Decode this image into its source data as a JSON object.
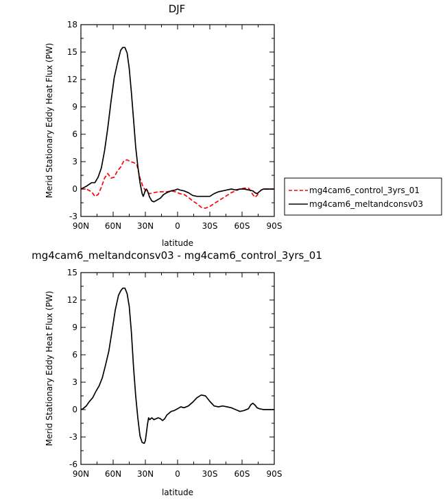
{
  "chart_data": [
    {
      "type": "line",
      "title": "DJF",
      "xlabel": "latitude",
      "ylabel": "Merid Stationary Eddy Heat Flux (PW)",
      "xlim": [
        90,
        -90
      ],
      "ylim": [
        -3,
        18
      ],
      "yticks": [
        "-3",
        "0",
        "3",
        "6",
        "9",
        "12",
        "15",
        "18"
      ],
      "yticks_values": [
        -3,
        0,
        3,
        6,
        9,
        12,
        15,
        18
      ],
      "xticks": [
        "90N",
        "60N",
        "30N",
        "0",
        "30S",
        "60S",
        "90S"
      ],
      "xticks_values": [
        90,
        60,
        30,
        0,
        -30,
        -60,
        -90
      ],
      "legend_position": "right",
      "series": [
        {
          "name": "mg4cam6_control_3yrs_01",
          "color": "#ff0000",
          "dash": "dashed",
          "x": [
            90,
            85,
            80,
            77,
            74,
            71,
            68,
            65,
            62,
            59,
            56,
            53,
            50,
            47,
            44,
            41,
            38,
            35,
            32,
            29,
            26,
            22,
            18,
            14,
            10,
            6,
            2,
            -2,
            -6,
            -10,
            -14,
            -18,
            -22,
            -26,
            -30,
            -34,
            -38,
            -42,
            -46,
            -50,
            -54,
            -58,
            -62,
            -66,
            -68,
            -70,
            -72,
            -74,
            -76,
            -78,
            -80,
            -83,
            -86,
            -90
          ],
          "y": [
            0.0,
            0.0,
            -0.3,
            -0.8,
            -0.6,
            0.2,
            1.2,
            1.7,
            1.2,
            1.3,
            2.0,
            2.4,
            3.1,
            3.2,
            3.0,
            2.9,
            2.7,
            1.2,
            0.2,
            -0.3,
            -0.5,
            -0.4,
            -0.3,
            -0.3,
            -0.3,
            -0.2,
            -0.3,
            -0.5,
            -0.6,
            -0.9,
            -1.3,
            -1.6,
            -2.0,
            -2.1,
            -1.9,
            -1.6,
            -1.3,
            -1.0,
            -0.7,
            -0.4,
            -0.2,
            0.0,
            0.1,
            0.1,
            -0.2,
            -0.6,
            -0.9,
            -0.7,
            -0.3,
            -0.1,
            0.0,
            0.0,
            0.0,
            0.0
          ]
        },
        {
          "name": "mg4cam6_meltandconsv03",
          "color": "#000000",
          "dash": "solid",
          "x": [
            90,
            85,
            80,
            77,
            74,
            71,
            68,
            65,
            62,
            59,
            56,
            53,
            51,
            49,
            47,
            45,
            43,
            41,
            39,
            37,
            35,
            34,
            33,
            32,
            31,
            30,
            29,
            28,
            26,
            24,
            22,
            19,
            16,
            13,
            10,
            6,
            2,
            0,
            -2,
            -6,
            -10,
            -14,
            -18,
            -22,
            -26,
            -30,
            -34,
            -38,
            -42,
            -46,
            -50,
            -54,
            -58,
            -62,
            -66,
            -70,
            -72,
            -74,
            -76,
            -78,
            -80,
            -84,
            -90
          ],
          "y": [
            0.0,
            0.3,
            0.7,
            0.7,
            1.3,
            2.3,
            4.2,
            6.7,
            9.6,
            12.2,
            13.8,
            15.2,
            15.5,
            15.5,
            14.9,
            13.2,
            10.6,
            7.6,
            4.6,
            2.5,
            0.7,
            0.1,
            -0.5,
            -0.8,
            -0.5,
            -0.1,
            0.0,
            -0.2,
            -0.9,
            -1.3,
            -1.4,
            -1.2,
            -1.0,
            -0.6,
            -0.4,
            -0.2,
            -0.1,
            0.0,
            -0.1,
            -0.2,
            -0.4,
            -0.7,
            -0.8,
            -0.8,
            -0.8,
            -0.8,
            -0.5,
            -0.3,
            -0.2,
            -0.1,
            0.0,
            -0.1,
            0.0,
            0.0,
            -0.1,
            -0.2,
            -0.4,
            -0.5,
            -0.3,
            -0.1,
            0.0,
            0.0,
            0.0
          ]
        }
      ]
    },
    {
      "type": "line",
      "title": "mg4cam6_meltandconsv03 - mg4cam6_control_3yrs_01",
      "xlabel": "latitude",
      "ylabel": "Merid Stationary Eddy Heat Flux (PW)",
      "xlim": [
        90,
        -90
      ],
      "ylim": [
        -6,
        15
      ],
      "yticks": [
        "-6",
        "-3",
        "0",
        "3",
        "6",
        "9",
        "12",
        "15"
      ],
      "yticks_values": [
        -6,
        -3,
        0,
        3,
        6,
        9,
        12,
        15
      ],
      "xticks": [
        "90N",
        "60N",
        "30N",
        "0",
        "30S",
        "60S",
        "90S"
      ],
      "xticks_values": [
        90,
        60,
        30,
        0,
        -30,
        -60,
        -90
      ],
      "series": [
        {
          "color": "#000000",
          "dash": "solid",
          "x": [
            90,
            88,
            85,
            82,
            79,
            76,
            73,
            70,
            67,
            64,
            61,
            58,
            55,
            53,
            51,
            49,
            47,
            45,
            43,
            41,
            39,
            37,
            35,
            33,
            31,
            30,
            29,
            28,
            27,
            26,
            24,
            22,
            20,
            18,
            16,
            14,
            12,
            10,
            6,
            3,
            0,
            -3,
            -6,
            -10,
            -14,
            -18,
            -22,
            -26,
            -30,
            -34,
            -38,
            -42,
            -46,
            -50,
            -54,
            -58,
            -62,
            -66,
            -68,
            -70,
            -72,
            -74,
            -76,
            -80,
            -85,
            -90
          ],
          "y": [
            0.0,
            0.1,
            0.4,
            0.9,
            1.3,
            2.0,
            2.6,
            3.5,
            4.9,
            6.4,
            8.6,
            10.9,
            12.5,
            13.0,
            13.3,
            13.3,
            12.7,
            11.3,
            8.5,
            4.6,
            1.5,
            -0.9,
            -2.9,
            -3.6,
            -3.7,
            -3.4,
            -2.5,
            -1.6,
            -0.9,
            -1.1,
            -0.9,
            -1.1,
            -1.0,
            -0.9,
            -1.0,
            -1.2,
            -1.0,
            -0.6,
            -0.2,
            -0.1,
            0.1,
            0.3,
            0.2,
            0.4,
            0.8,
            1.3,
            1.6,
            1.5,
            0.9,
            0.4,
            0.3,
            0.4,
            0.3,
            0.2,
            0.0,
            -0.2,
            -0.1,
            0.1,
            0.5,
            0.7,
            0.5,
            0.2,
            0.1,
            0.0,
            0.0,
            0.0
          ]
        }
      ]
    }
  ]
}
